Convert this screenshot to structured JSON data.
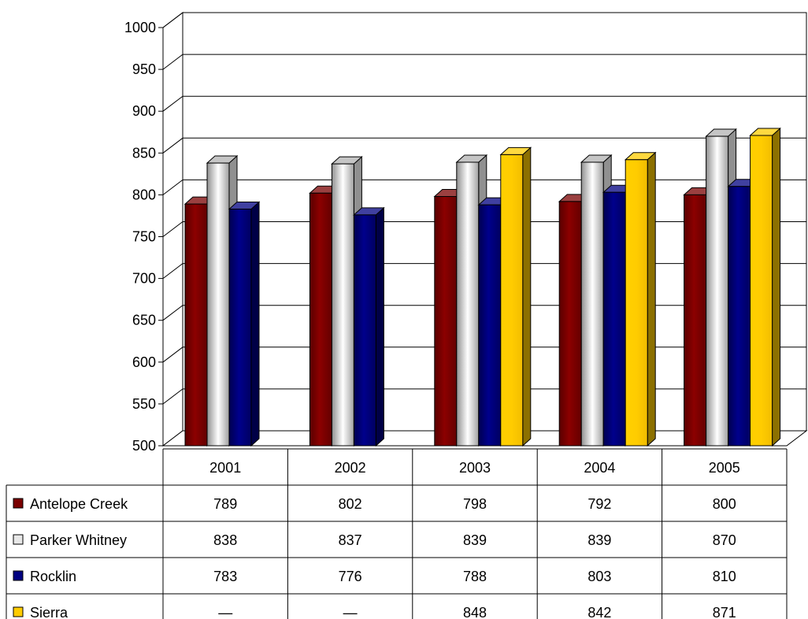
{
  "chart_data": {
    "type": "bar",
    "title": "",
    "xlabel": "",
    "ylabel": "",
    "ylim": [
      500,
      1000
    ],
    "yticks": [
      500,
      550,
      600,
      650,
      700,
      750,
      800,
      850,
      900,
      950,
      1000
    ],
    "grid": true,
    "categories": [
      "2001",
      "2002",
      "2003",
      "2004",
      "2005"
    ],
    "series": [
      {
        "name": "Antelope Creek",
        "color": "#7a0000",
        "values": [
          789,
          802,
          798,
          792,
          800
        ]
      },
      {
        "name": "Parker Whitney",
        "color": "#e8e8e8",
        "values": [
          838,
          837,
          839,
          839,
          870
        ]
      },
      {
        "name": "Rocklin",
        "color": "#000080",
        "values": [
          783,
          776,
          788,
          803,
          810
        ]
      },
      {
        "name": "Sierra",
        "color": "#ffcc00",
        "values": [
          null,
          null,
          848,
          842,
          871
        ]
      }
    ],
    "data_table": {
      "missing_label": "—"
    }
  }
}
